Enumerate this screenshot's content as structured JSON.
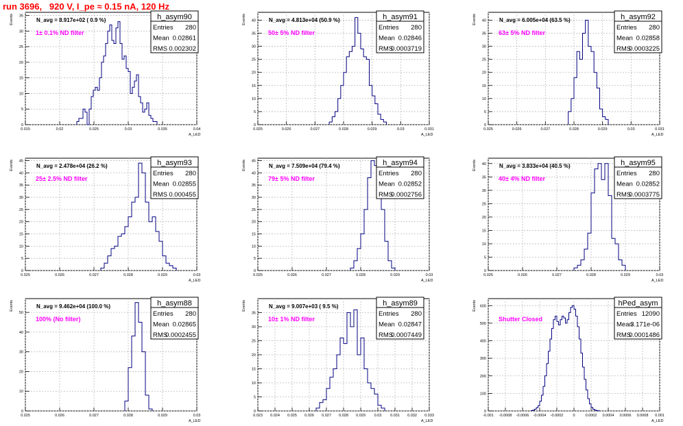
{
  "title": "run 3696,   920 V, I_pe ≈ 0.15 nA, 120 Hz",
  "chart_data": [
    {
      "type": "bar",
      "name": "h_asym90",
      "navg": "N_avg = 8.917e+02 ( 0.9 %)",
      "filter": "1± 0.1% ND filter",
      "stats": [
        [
          "Entries",
          "280"
        ],
        [
          "Mean",
          "0.02861"
        ],
        [
          "RMS",
          "0.002302"
        ]
      ],
      "ylabel": "Events",
      "xlabel": "A_LED",
      "xlim": [
        0.015,
        0.04
      ],
      "ylim": [
        0,
        36
      ],
      "yticks": [
        0,
        5,
        10,
        15,
        20,
        25,
        30,
        35
      ],
      "xticks": [
        0.015,
        0.02,
        0.025,
        0.03,
        0.035,
        0.04
      ],
      "xticklabels": [
        "0.015",
        "0.02",
        "0.025",
        "0.03",
        "0.035",
        "0.04"
      ],
      "bin_start": 0.0225,
      "bin_width": 0.0003,
      "values": [
        1,
        2,
        2,
        5,
        4,
        0,
        5,
        9,
        11,
        12,
        11,
        15,
        20,
        22,
        26,
        30,
        32,
        27,
        26,
        31,
        33,
        26,
        21,
        22,
        18,
        17,
        10,
        12,
        14,
        16,
        9,
        7,
        4,
        5,
        7,
        3,
        2,
        1,
        1
      ]
    },
    {
      "type": "bar",
      "name": "h_asym91",
      "navg": "N_avg = 4.813e+04 (50.9 %)",
      "filter": "50± 5% ND filter",
      "stats": [
        [
          "Entries",
          "280"
        ],
        [
          "Mean",
          "0.02846"
        ],
        [
          "RMS",
          "0.0003719"
        ]
      ],
      "ylabel": "Events",
      "xlabel": "A_LED",
      "xlim": [
        0.025,
        0.031
      ],
      "ylim": [
        0,
        43
      ],
      "yticks": [
        0,
        5,
        10,
        15,
        20,
        25,
        30,
        35,
        40
      ],
      "xticks": [
        0.025,
        0.026,
        0.027,
        0.028,
        0.029,
        0.03,
        0.031
      ],
      "xticklabels": [
        "0.025",
        "0.026",
        "0.027",
        "0.028",
        "0.029",
        "0.03",
        "0.031"
      ],
      "bin_start": 0.0275,
      "bin_width": 0.0001,
      "values": [
        1,
        3,
        5,
        10,
        15,
        20,
        26,
        28,
        30,
        41,
        35,
        29,
        26,
        25,
        15,
        11,
        8,
        4,
        2,
        1
      ]
    },
    {
      "type": "bar",
      "name": "h_asym92",
      "navg": "N_avg = 6.005e+04 (63.5 %)",
      "filter": "63± 5% ND filter",
      "stats": [
        [
          "Entries",
          "280"
        ],
        [
          "Mean",
          "0.02858"
        ],
        [
          "RMS",
          "0.0003225"
        ]
      ],
      "ylabel": "Events",
      "xlabel": "A_LED",
      "xlim": [
        0.025,
        0.031
      ],
      "ylim": [
        0,
        43
      ],
      "yticks": [
        0,
        5,
        10,
        15,
        20,
        25,
        30,
        35,
        40
      ],
      "xticks": [
        0.025,
        0.026,
        0.027,
        0.028,
        0.029,
        0.03,
        0.031
      ],
      "xticklabels": [
        "0.025",
        "0.026",
        "0.027",
        "0.028",
        "0.029",
        "0.03",
        "0.031"
      ],
      "bin_start": 0.0278,
      "bin_width": 0.0001,
      "values": [
        5,
        10,
        18,
        28,
        25,
        35,
        40,
        30,
        28,
        20,
        14,
        6,
        3,
        2
      ]
    },
    {
      "type": "bar",
      "name": "h_asym93",
      "navg": "N_avg = 2.478e+04 (26.2 %)",
      "filter": "25± 2.5% ND filter",
      "stats": [
        [
          "Entries",
          "280"
        ],
        [
          "Mean",
          "0.02855"
        ],
        [
          "RMS",
          "0.000455"
        ]
      ],
      "ylabel": "Events",
      "xlabel": "A_LED",
      "xlim": [
        0.025,
        0.03
      ],
      "ylim": [
        0,
        46
      ],
      "yticks": [
        0,
        5,
        10,
        15,
        20,
        25,
        30,
        35,
        40,
        45
      ],
      "xticks": [
        0.025,
        0.026,
        0.027,
        0.028,
        0.029,
        0.03
      ],
      "xticklabels": [
        "0.025",
        "0.026",
        "0.027",
        "0.028",
        "0.029",
        "0.03"
      ],
      "bin_start": 0.0272,
      "bin_width": 0.0001,
      "values": [
        1,
        3,
        6,
        9,
        10,
        14,
        15,
        18,
        22,
        28,
        30,
        44,
        40,
        28,
        20,
        22,
        16,
        12,
        6,
        3,
        2,
        1
      ]
    },
    {
      "type": "bar",
      "name": "h_asym94",
      "navg": "N_avg = 7.509e+04 (79.4 %)",
      "filter": "79± 5% ND filter",
      "stats": [
        [
          "Entries",
          "280"
        ],
        [
          "Mean",
          "0.02852"
        ],
        [
          "RMS",
          "0.0002756"
        ]
      ],
      "ylabel": "Events",
      "xlabel": "A_LED",
      "xlim": [
        0.025,
        0.03
      ],
      "ylim": [
        0,
        46
      ],
      "yticks": [
        0,
        5,
        10,
        15,
        20,
        25,
        30,
        35,
        40,
        45
      ],
      "xticks": [
        0.025,
        0.026,
        0.027,
        0.028,
        0.029,
        0.03
      ],
      "xticklabels": [
        "0.025",
        "0.026",
        "0.027",
        "0.028",
        "0.029",
        "0.03"
      ],
      "bin_start": 0.0277,
      "bin_width": 0.0001,
      "values": [
        1,
        4,
        9,
        15,
        25,
        38,
        45,
        43,
        35,
        25,
        12,
        4,
        1
      ]
    },
    {
      "type": "bar",
      "name": "h_asym95",
      "navg": "N_avg = 3.833e+04 (40.5 %)",
      "filter": "40± 4% ND filter",
      "stats": [
        [
          "Entries",
          "280"
        ],
        [
          "Mean",
          "0.02852"
        ],
        [
          "RMS",
          "0.0003775"
        ]
      ],
      "ylabel": "Events",
      "xlabel": "A_LED",
      "xlim": [
        0.025,
        0.03
      ],
      "ylim": [
        0,
        42
      ],
      "yticks": [
        0,
        5,
        10,
        15,
        20,
        25,
        30,
        35,
        40
      ],
      "xticks": [
        0.025,
        0.026,
        0.027,
        0.028,
        0.029,
        0.03
      ],
      "xticklabels": [
        "0.025",
        "0.026",
        "0.027",
        "0.028",
        "0.029",
        "0.03"
      ],
      "bin_start": 0.0275,
      "bin_width": 0.0001,
      "values": [
        1,
        2,
        4,
        8,
        14,
        29,
        38,
        40,
        34,
        40,
        28,
        12,
        10,
        4,
        2
      ]
    },
    {
      "type": "bar",
      "name": "h_asym88",
      "navg": "N_avg = 9.462e+04 (100.0 %)",
      "filter": "100% (No filter)",
      "stats": [
        [
          "Entries",
          "280"
        ],
        [
          "Mean",
          "0.02865"
        ],
        [
          "RMS",
          "0.0002455"
        ]
      ],
      "ylabel": "Events",
      "xlabel": "A_LED",
      "xlim": [
        0.025,
        0.03
      ],
      "ylim": [
        0,
        57
      ],
      "yticks": [
        0,
        10,
        20,
        30,
        40,
        50
      ],
      "xticks": [
        0.025,
        0.026,
        0.027,
        0.028,
        0.029,
        0.03
      ],
      "xticklabels": [
        "0.025",
        "0.026",
        "0.027",
        "0.028",
        "0.029",
        "0.03"
      ],
      "bin_start": 0.0279,
      "bin_width": 0.0001,
      "values": [
        5,
        22,
        38,
        55,
        45,
        30,
        8,
        1
      ]
    },
    {
      "type": "bar",
      "name": "h_asym89",
      "navg": "N_avg = 9.007e+03 ( 9.5 %)",
      "filter": "10± 1% ND filter",
      "stats": [
        [
          "Entries",
          "280"
        ],
        [
          "Mean",
          "0.02847"
        ],
        [
          "RMS",
          "0.0007449"
        ]
      ],
      "ylabel": "Events",
      "xlabel": "A_LED",
      "xlim": [
        0.023,
        0.033
      ],
      "ylim": [
        0,
        40
      ],
      "yticks": [
        0,
        5,
        10,
        15,
        20,
        25,
        30,
        35
      ],
      "xticks": [
        0.023,
        0.024,
        0.025,
        0.026,
        0.027,
        0.028,
        0.029,
        0.03,
        0.031,
        0.032,
        0.033
      ],
      "xticklabels": [
        "0.023",
        "0.024",
        "0.025",
        "0.026",
        "0.027",
        "0.028",
        "0.029",
        "0.03",
        "0.031",
        "0.032",
        "0.033"
      ],
      "bin_start": 0.0264,
      "bin_width": 0.0002,
      "values": [
        1,
        3,
        4,
        8,
        12,
        15,
        20,
        26,
        24,
        35,
        30,
        36,
        20,
        26,
        15,
        10,
        8,
        6,
        2,
        1
      ]
    },
    {
      "type": "bar",
      "name": "hPed_asym",
      "navg": "",
      "filter": "Shutter Closed",
      "stats": [
        [
          "Entries",
          "12090"
        ],
        [
          "Mean",
          "3.171e-06"
        ],
        [
          "RMS",
          "0.0001486"
        ]
      ],
      "ylabel": "Events",
      "xlabel": "A_LED",
      "xlim": [
        -0.001,
        0.001
      ],
      "ylim": [
        0,
        640
      ],
      "yticks": [
        0,
        100,
        200,
        300,
        400,
        500,
        600
      ],
      "xticks": [
        -0.001,
        -0.0008,
        -0.0006,
        -0.0004,
        -0.0002,
        0,
        0.0002,
        0.0004,
        0.0006,
        0.0008,
        0.001
      ],
      "xticklabels": [
        "-0.001",
        "-0.0008",
        "-0.0006",
        "-0.0004",
        "-0.0002",
        "0",
        "0.0002",
        "0.0004",
        "0.0006",
        "0.0008",
        "0.001"
      ],
      "bin_start": -0.0005,
      "bin_width": 2e-05,
      "values": [
        2,
        5,
        10,
        18,
        30,
        55,
        90,
        140,
        200,
        270,
        340,
        410,
        470,
        520,
        540,
        510,
        490,
        520,
        540,
        530,
        500,
        520,
        560,
        590,
        600,
        580,
        540,
        480,
        410,
        330,
        250,
        180,
        120,
        70,
        40,
        20,
        10,
        5,
        2,
        1
      ]
    }
  ]
}
